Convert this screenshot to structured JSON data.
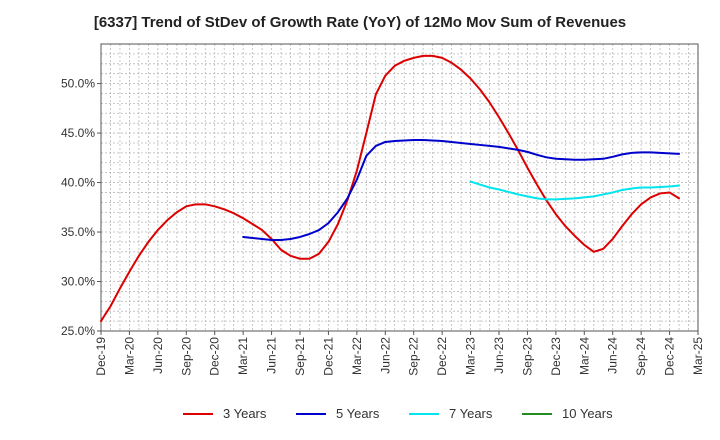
{
  "chart_data": {
    "type": "line",
    "title": "[6337]  Trend of StDev of Growth Rate (YoY) of 12Mo Mov Sum of Revenues",
    "xlabel": "",
    "ylabel": "",
    "ylim": [
      25,
      54
    ],
    "y_ticks": [
      25,
      30,
      35,
      40,
      45,
      50
    ],
    "y_tick_labels": [
      "25.0%",
      "30.0%",
      "35.0%",
      "40.0%",
      "45.0%",
      "50.0%"
    ],
    "x_ticks": [
      "Dec-19",
      "Mar-20",
      "Jun-20",
      "Sep-20",
      "Dec-20",
      "Mar-21",
      "Jun-21",
      "Sep-21",
      "Dec-21",
      "Mar-22",
      "Jun-22",
      "Sep-22",
      "Dec-22",
      "Mar-23",
      "Jun-23",
      "Sep-23",
      "Dec-23",
      "Mar-24",
      "Jun-24",
      "Sep-24",
      "Dec-24",
      "Mar-25"
    ],
    "x_unit": "month index (0 = Dec-19)",
    "x_range": [
      0,
      63
    ],
    "grid": true,
    "legend_position": "bottom",
    "series": [
      {
        "name": "3 Years",
        "color": "#dd0000",
        "points": [
          [
            0,
            26.0
          ],
          [
            1,
            27.5
          ],
          [
            2,
            29.3
          ],
          [
            3,
            31.0
          ],
          [
            4,
            32.6
          ],
          [
            5,
            34.0
          ],
          [
            6,
            35.2
          ],
          [
            7,
            36.2
          ],
          [
            8,
            37.0
          ],
          [
            9,
            37.6
          ],
          [
            10,
            37.8
          ],
          [
            11,
            37.8
          ],
          [
            12,
            37.6
          ],
          [
            13,
            37.3
          ],
          [
            14,
            36.9
          ],
          [
            15,
            36.4
          ],
          [
            16,
            35.8
          ],
          [
            17,
            35.2
          ],
          [
            18,
            34.3
          ],
          [
            19,
            33.2
          ],
          [
            20,
            32.6
          ],
          [
            21,
            32.3
          ],
          [
            22,
            32.3
          ],
          [
            23,
            32.8
          ],
          [
            24,
            34.0
          ],
          [
            25,
            35.8
          ],
          [
            26,
            38.2
          ],
          [
            27,
            41.2
          ],
          [
            28,
            45.0
          ],
          [
            29,
            48.9
          ],
          [
            30,
            50.8
          ],
          [
            31,
            51.8
          ],
          [
            32,
            52.3
          ],
          [
            33,
            52.6
          ],
          [
            34,
            52.8
          ],
          [
            35,
            52.8
          ],
          [
            36,
            52.6
          ],
          [
            37,
            52.1
          ],
          [
            38,
            51.4
          ],
          [
            39,
            50.5
          ],
          [
            40,
            49.4
          ],
          [
            41,
            48.1
          ],
          [
            42,
            46.6
          ],
          [
            43,
            45.0
          ],
          [
            44,
            43.3
          ],
          [
            45,
            41.5
          ],
          [
            46,
            39.8
          ],
          [
            47,
            38.2
          ],
          [
            48,
            36.8
          ],
          [
            49,
            35.6
          ],
          [
            50,
            34.6
          ],
          [
            51,
            33.7
          ],
          [
            52,
            33.0
          ],
          [
            53,
            33.3
          ],
          [
            54,
            34.3
          ],
          [
            55,
            35.6
          ],
          [
            56,
            36.8
          ],
          [
            57,
            37.8
          ],
          [
            58,
            38.5
          ],
          [
            59,
            38.9
          ],
          [
            60,
            39.0
          ],
          [
            61,
            38.4
          ]
        ]
      },
      {
        "name": "5 Years",
        "color": "#0000cc",
        "points": [
          [
            15,
            34.5
          ],
          [
            16,
            34.4
          ],
          [
            17,
            34.3
          ],
          [
            18,
            34.2
          ],
          [
            19,
            34.2
          ],
          [
            20,
            34.3
          ],
          [
            21,
            34.5
          ],
          [
            22,
            34.8
          ],
          [
            23,
            35.2
          ],
          [
            24,
            35.9
          ],
          [
            25,
            37.0
          ],
          [
            26,
            38.4
          ],
          [
            27,
            40.3
          ],
          [
            28,
            42.7
          ],
          [
            29,
            43.7
          ],
          [
            30,
            44.1
          ],
          [
            31,
            44.2
          ],
          [
            32,
            44.25
          ],
          [
            33,
            44.3
          ],
          [
            34,
            44.3
          ],
          [
            35,
            44.25
          ],
          [
            36,
            44.2
          ],
          [
            37,
            44.1
          ],
          [
            38,
            44.0
          ],
          [
            39,
            43.9
          ],
          [
            40,
            43.8
          ],
          [
            41,
            43.7
          ],
          [
            42,
            43.6
          ],
          [
            43,
            43.45
          ],
          [
            44,
            43.3
          ],
          [
            45,
            43.1
          ],
          [
            46,
            42.8
          ],
          [
            47,
            42.55
          ],
          [
            48,
            42.4
          ],
          [
            49,
            42.35
          ],
          [
            50,
            42.3
          ],
          [
            51,
            42.3
          ],
          [
            52,
            42.35
          ],
          [
            53,
            42.4
          ],
          [
            54,
            42.6
          ],
          [
            55,
            42.85
          ],
          [
            56,
            43.0
          ],
          [
            57,
            43.05
          ],
          [
            58,
            43.05
          ],
          [
            59,
            43.0
          ],
          [
            60,
            42.95
          ],
          [
            61,
            42.9
          ]
        ]
      },
      {
        "name": "7 Years",
        "color": "#00e5ee",
        "points": [
          [
            39,
            40.1
          ],
          [
            40,
            39.8
          ],
          [
            41,
            39.5
          ],
          [
            42,
            39.3
          ],
          [
            43,
            39.05
          ],
          [
            44,
            38.8
          ],
          [
            45,
            38.6
          ],
          [
            46,
            38.4
          ],
          [
            47,
            38.3
          ],
          [
            48,
            38.3
          ],
          [
            49,
            38.35
          ],
          [
            50,
            38.4
          ],
          [
            51,
            38.5
          ],
          [
            52,
            38.6
          ],
          [
            53,
            38.8
          ],
          [
            54,
            39.0
          ],
          [
            55,
            39.25
          ],
          [
            56,
            39.4
          ],
          [
            57,
            39.5
          ],
          [
            58,
            39.5
          ],
          [
            59,
            39.55
          ],
          [
            60,
            39.6
          ],
          [
            61,
            39.7
          ]
        ]
      },
      {
        "name": "10 Years",
        "color": "#228b22",
        "points": []
      }
    ]
  }
}
